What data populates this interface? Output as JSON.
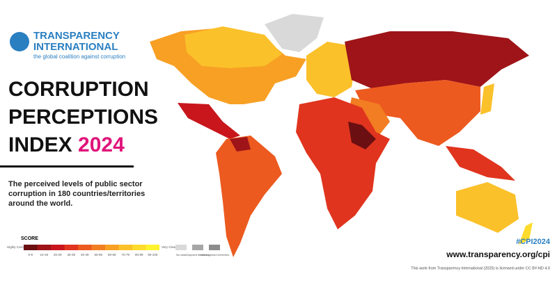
{
  "header": {
    "org_line1": "TRANSPARENCY",
    "org_line2": "INTERNATIONAL",
    "tagline": "the global coalition against corruption"
  },
  "title": {
    "line1": "CORRUPTION",
    "line2": "PERCEPTIONS",
    "line3": "INDEX",
    "year": "2024"
  },
  "description": "The perceived levels of public sector corruption in 180 countries/territories around the world.",
  "legend": {
    "title": "SCORE",
    "low_label": "Highly Corrupt",
    "high_label": "Very Clean",
    "bins": [
      {
        "label": "0-9",
        "color": "#6b0f12"
      },
      {
        "label": "10-19",
        "color": "#9e1418"
      },
      {
        "label": "20-29",
        "color": "#c8161c"
      },
      {
        "label": "30-39",
        "color": "#e0341e"
      },
      {
        "label": "40-49",
        "color": "#ec5a1f"
      },
      {
        "label": "50-59",
        "color": "#f27d22"
      },
      {
        "label": "60-69",
        "color": "#f7a024"
      },
      {
        "label": "70-79",
        "color": "#fbc12a"
      },
      {
        "label": "80-89",
        "color": "#fedb2c"
      },
      {
        "label": "90-100",
        "color": "#fff22e"
      }
    ],
    "extras": [
      {
        "label": "No data",
        "color": "#d9d9d9"
      },
      {
        "label": "Disputed territories",
        "color": "#a6a6a6"
      },
      {
        "label": "Unrecognised territories",
        "color": "#8c8c8c"
      }
    ]
  },
  "footer": {
    "hashtag": "#CPI2024",
    "url": "www.transparency.org/cpi",
    "license": "This work from Transparency International (2025) is licensed under CC BY-ND 4.0"
  }
}
